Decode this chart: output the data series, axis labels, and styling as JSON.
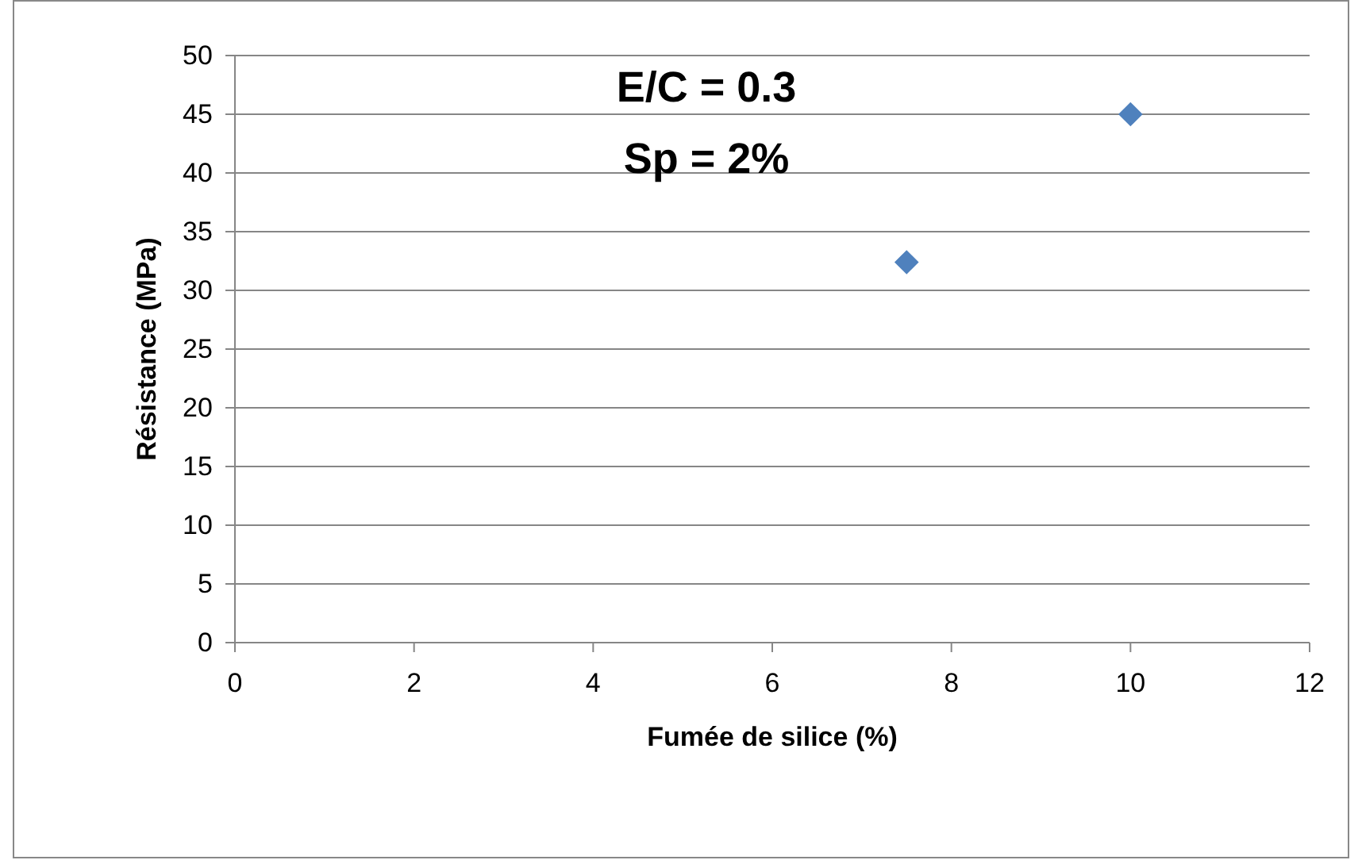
{
  "chart_data": {
    "type": "scatter",
    "xlabel": "Fumée de silice (%)",
    "ylabel": "Résistance (MPa)",
    "x": [
      7.5,
      10
    ],
    "series": [
      {
        "color": "#4f81bd",
        "values": [
          32.4,
          45
        ]
      }
    ],
    "xlim": [
      0,
      12
    ],
    "xticks": [
      0,
      2,
      4,
      6,
      8,
      10,
      12
    ],
    "ylim": [
      0,
      50
    ],
    "yticks": [
      0,
      5,
      10,
      15,
      20,
      25,
      30,
      35,
      40,
      45,
      50
    ],
    "grid": "y",
    "marker": "diamond",
    "annotations": [
      "E/C = 0.3",
      "Sp = 2%"
    ]
  }
}
